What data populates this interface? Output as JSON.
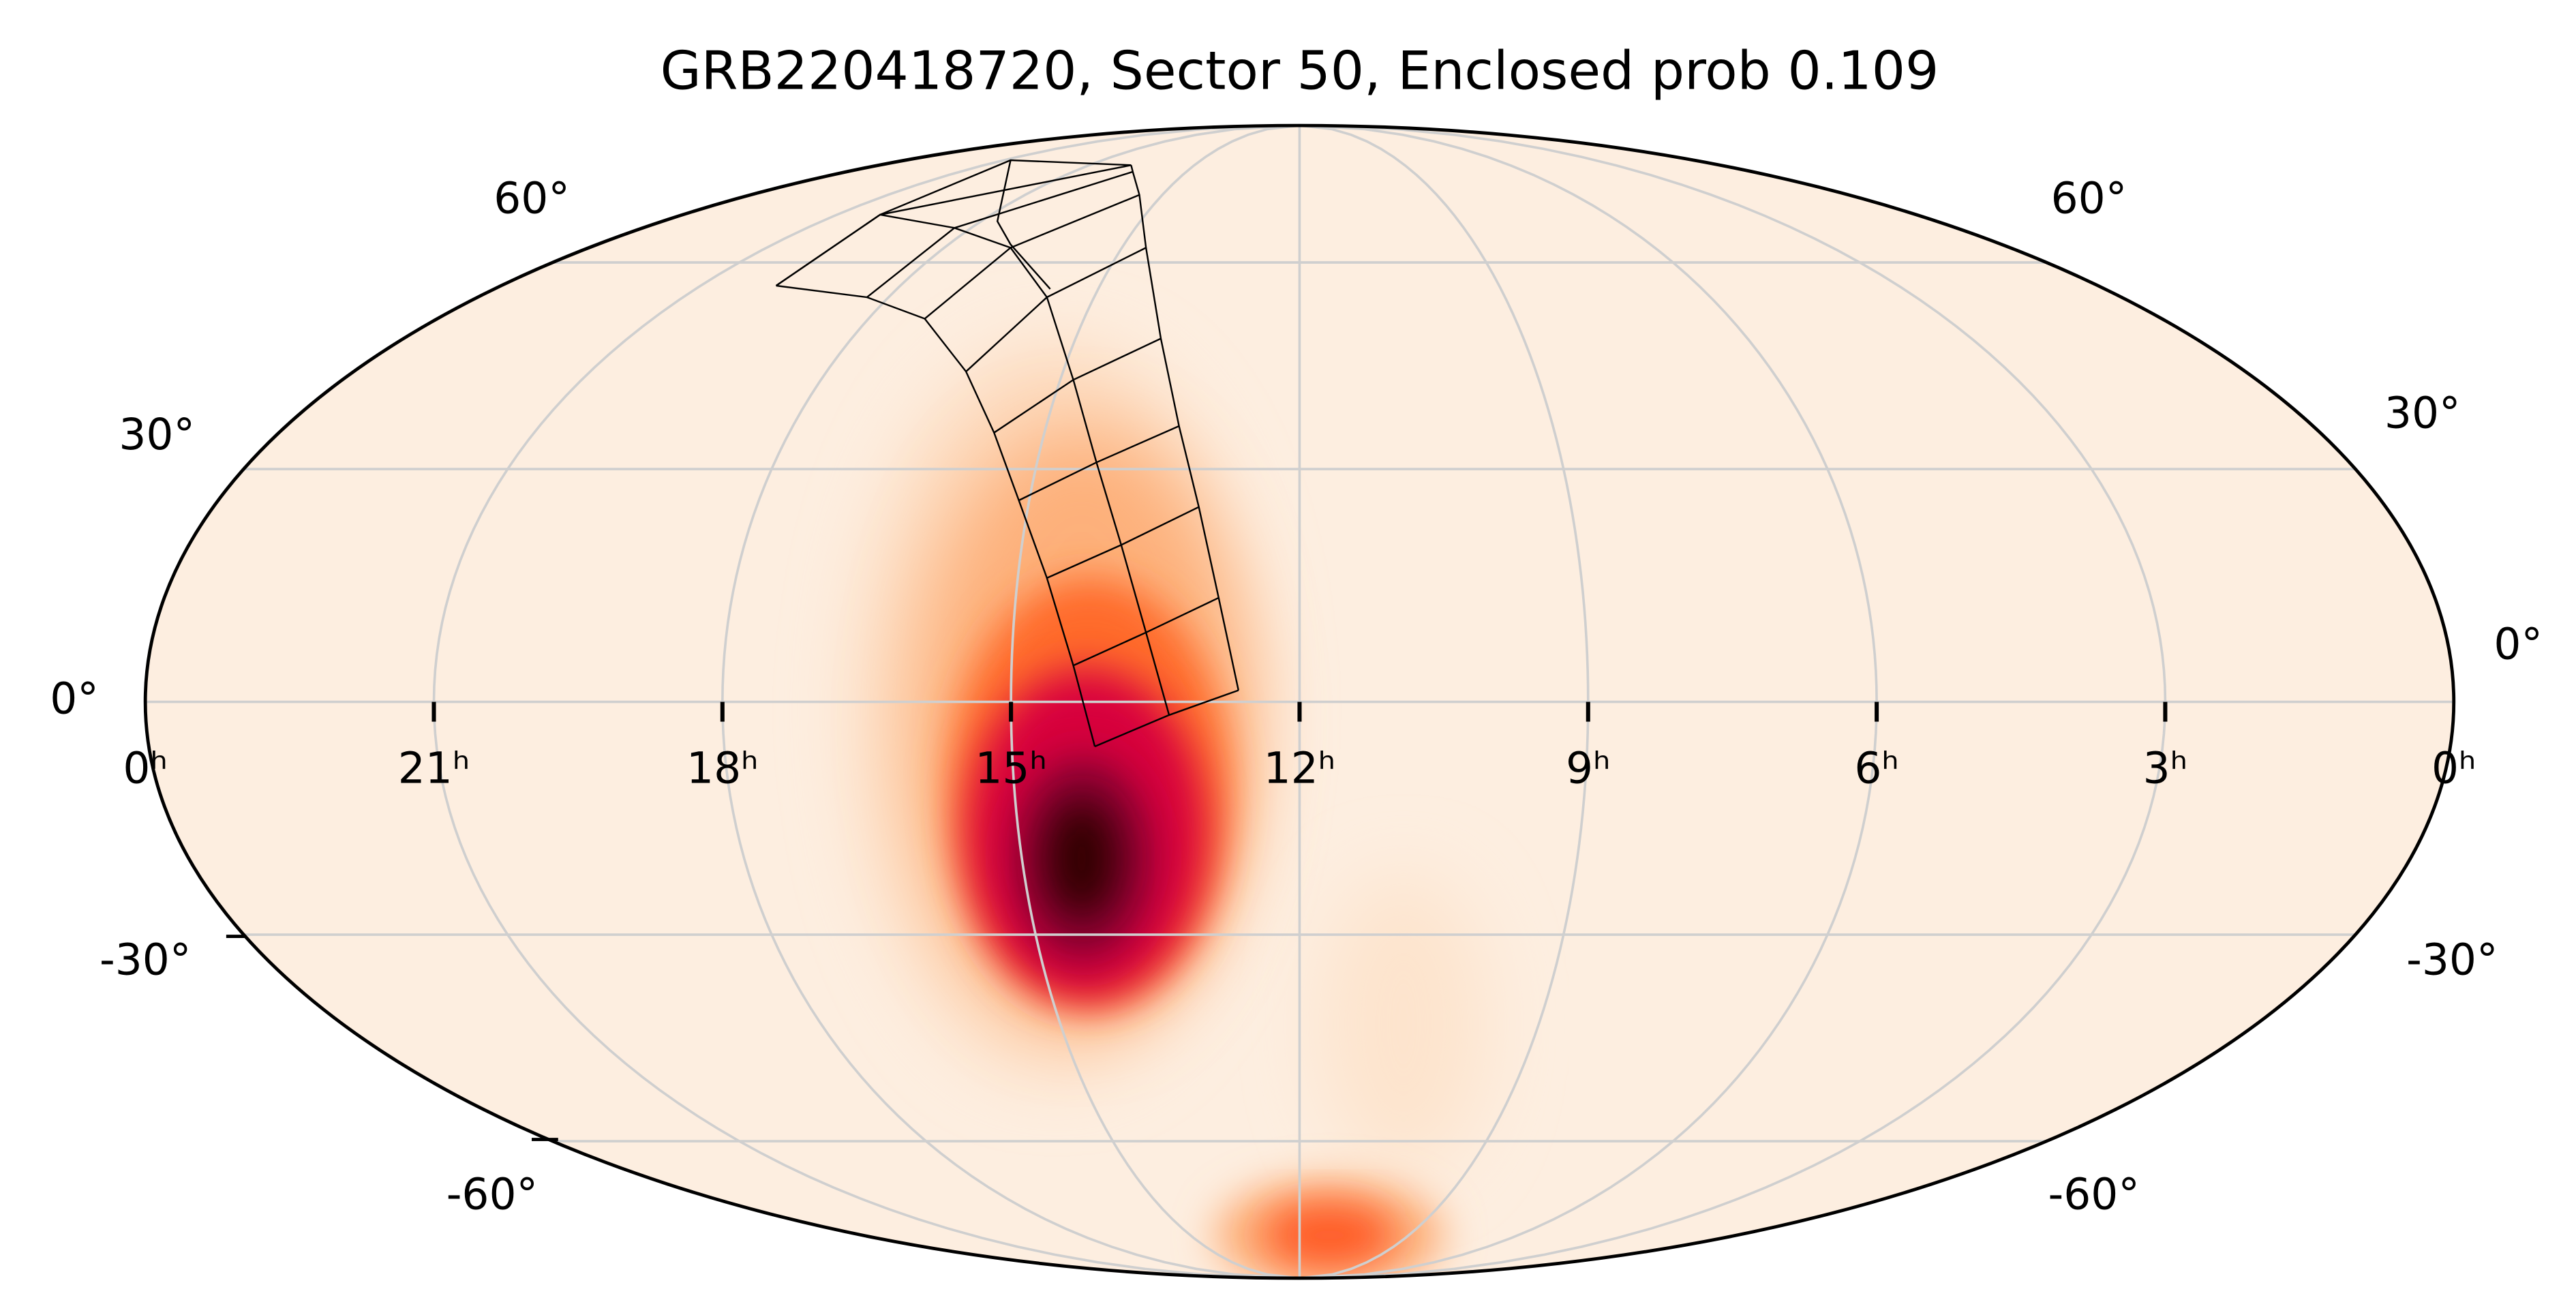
{
  "map": {
    "title": "GRB220418720, Sector 50, Enclosed prob 0.109",
    "ra_labels": [
      "0ʰ",
      "21ʰ",
      "18ʰ",
      "15ʰ",
      "12ʰ",
      "9ʰ",
      "6ʰ",
      "3ʰ",
      "0ʰ"
    ],
    "dec_labels_left": [
      "60°",
      "30°",
      "0°",
      "-30°",
      "-60°"
    ],
    "dec_labels_right": [
      "60°",
      "30°",
      "0°",
      "-30°",
      "-60°"
    ]
  }
}
